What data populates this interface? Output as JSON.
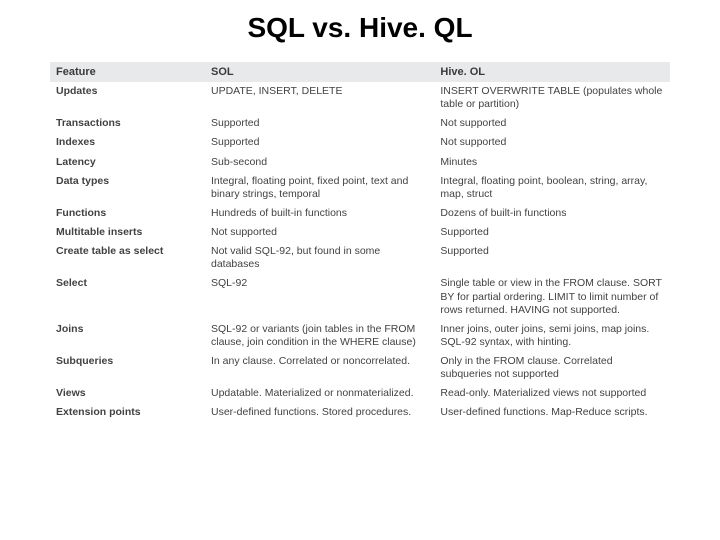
{
  "title": "SQL vs. Hive. QL",
  "title_fontsize": 28,
  "title_color": "#000000",
  "header_bg": "#e8e9ea",
  "header_color": "#3a3a3a",
  "body_color": "#424242",
  "body_fontsize": 10.5,
  "header_fontsize": 11,
  "columns": [
    "Feature",
    "SOL",
    "Hive. OL"
  ],
  "rows": [
    [
      "Updates",
      "UPDATE, INSERT, DELETE",
      "INSERT OVERWRITE TABLE (populates whole table or partition)"
    ],
    [
      "Transactions",
      "Supported",
      "Not supported"
    ],
    [
      "Indexes",
      "Supported",
      "Not supported"
    ],
    [
      "Latency",
      "Sub-second",
      "Minutes"
    ],
    [
      "Data types",
      "Integral, floating point, fixed point, text and binary strings, temporal",
      "Integral, floating point, boolean, string, array, map, struct"
    ],
    [
      "Functions",
      "Hundreds of built-in functions",
      "Dozens of built-in functions"
    ],
    [
      "Multitable inserts",
      "Not supported",
      "Supported"
    ],
    [
      "Create table as select",
      "Not valid SQL-92, but found in some databases",
      "Supported"
    ],
    [
      "Select",
      "SQL-92",
      "Single table or view in the FROM clause. SORT BY for partial ordering. LIMIT to limit number of rows returned. HAVING not supported."
    ],
    [
      "Joins",
      "SQL-92 or variants (join tables in the FROM clause, join condition in the WHERE clause)",
      "Inner joins, outer joins, semi joins, map joins. SQL-92 syntax, with hinting."
    ],
    [
      "Subqueries",
      "In any clause. Correlated or noncorrelated.",
      "Only in the FROM clause. Correlated subqueries not supported"
    ],
    [
      "Views",
      "Updatable. Materialized or nonmaterialized.",
      "Read-only. Materialized views not supported"
    ],
    [
      "Extension points",
      "User-defined functions. Stored procedures.",
      "User-defined functions. Map-Reduce scripts."
    ]
  ]
}
